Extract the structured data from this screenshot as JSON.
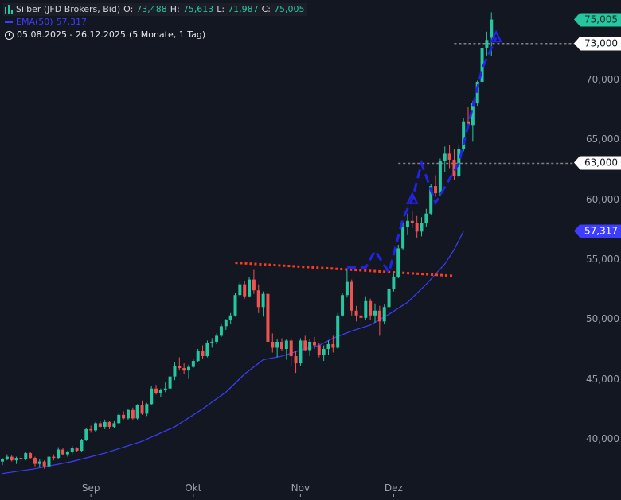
{
  "legend": {
    "symbol_line": "Silber (JFD Brokers, Bid)",
    "open_label": "O:",
    "open": "73,488",
    "high_label": "H:",
    "high": "75,613",
    "low_label": "L:",
    "low": "71,987",
    "close_label": "C:",
    "close": "75,005",
    "ema_label": "EMA(50)",
    "ema_value": "57,317",
    "range": "05.08.2025 - 26.12.2025",
    "period": "(5 Monate, 1 Tag)"
  },
  "colors": {
    "background": "#131722",
    "up": "#26c6a0",
    "down": "#ef5350",
    "ema": "#3d3dff",
    "trendline": "#ff3b1f",
    "projection": "#2323e8",
    "level": "#808080"
  },
  "icons": [
    "candles-icon",
    "line-icon",
    "clock-icon"
  ],
  "chart_data": {
    "type": "candlestick",
    "title": "Silber (JFD Brokers, Bid)",
    "ylim": [
      36000,
      77000
    ],
    "y_ticks": [
      {
        "value": 40000,
        "label": "40,000"
      },
      {
        "value": 45000,
        "label": "45,000"
      },
      {
        "value": 50000,
        "label": "50,000"
      },
      {
        "value": 55000,
        "label": "55,000"
      },
      {
        "value": 60000,
        "label": "60,000"
      },
      {
        "value": 65000,
        "label": "65,000"
      },
      {
        "value": 70000,
        "label": "70,000"
      }
    ],
    "x_ticks": [
      {
        "index": 19,
        "label": "Sep"
      },
      {
        "index": 41,
        "label": "Okt"
      },
      {
        "index": 64,
        "label": "Nov"
      },
      {
        "index": 84,
        "label": "Dez"
      }
    ],
    "candles": [
      [
        38100,
        38400,
        37800,
        38300
      ],
      [
        38300,
        38700,
        38200,
        38500
      ],
      [
        38500,
        38600,
        38100,
        38200
      ],
      [
        38200,
        38500,
        37900,
        38400
      ],
      [
        38400,
        38600,
        38100,
        38300
      ],
      [
        38300,
        38900,
        38200,
        38800
      ],
      [
        38800,
        38900,
        38300,
        38400
      ],
      [
        38400,
        38500,
        37700,
        37900
      ],
      [
        37900,
        38300,
        37600,
        38100
      ],
      [
        38100,
        38200,
        37500,
        37700
      ],
      [
        37700,
        38600,
        37600,
        38500
      ],
      [
        38500,
        38700,
        38200,
        38400
      ],
      [
        38400,
        39300,
        38300,
        39100
      ],
      [
        39100,
        39200,
        38600,
        38700
      ],
      [
        38700,
        39000,
        38500,
        38900
      ],
      [
        38900,
        39400,
        38700,
        39200
      ],
      [
        39200,
        39300,
        38900,
        39000
      ],
      [
        39000,
        40000,
        38900,
        39900
      ],
      [
        39900,
        40900,
        39800,
        40800
      ],
      [
        40800,
        41100,
        40500,
        40700
      ],
      [
        40700,
        41400,
        40600,
        41300
      ],
      [
        41300,
        41500,
        40900,
        41000
      ],
      [
        41000,
        41600,
        40800,
        41400
      ],
      [
        41400,
        41500,
        40800,
        41000
      ],
      [
        41000,
        41500,
        40900,
        41300
      ],
      [
        41300,
        42100,
        41200,
        42000
      ],
      [
        42000,
        42300,
        41600,
        41700
      ],
      [
        41700,
        42500,
        41600,
        42400
      ],
      [
        42400,
        42600,
        41600,
        41700
      ],
      [
        41700,
        42900,
        41600,
        42800
      ],
      [
        42800,
        43200,
        42000,
        42100
      ],
      [
        42100,
        43000,
        41900,
        42900
      ],
      [
        42900,
        44400,
        42800,
        44200
      ],
      [
        44200,
        44500,
        43700,
        43800
      ],
      [
        43800,
        44200,
        43500,
        44100
      ],
      [
        44100,
        44700,
        43900,
        44200
      ],
      [
        44200,
        45300,
        44100,
        45200
      ],
      [
        45200,
        46400,
        44900,
        46100
      ],
      [
        46100,
        46800,
        45700,
        45900
      ],
      [
        45900,
        46300,
        45400,
        45700
      ],
      [
        45700,
        46200,
        45000,
        46000
      ],
      [
        46000,
        46700,
        45900,
        46500
      ],
      [
        46500,
        47500,
        46400,
        47300
      ],
      [
        47300,
        47800,
        46700,
        46900
      ],
      [
        46900,
        48200,
        46800,
        48000
      ],
      [
        48000,
        48400,
        47600,
        48100
      ],
      [
        48100,
        48800,
        47900,
        48600
      ],
      [
        48600,
        49600,
        48500,
        49400
      ],
      [
        49400,
        50000,
        49100,
        49900
      ],
      [
        49900,
        50500,
        49600,
        50300
      ],
      [
        50300,
        52200,
        50200,
        52000
      ],
      [
        52000,
        53100,
        51800,
        52900
      ],
      [
        52900,
        53200,
        51700,
        51900
      ],
      [
        51900,
        53500,
        51800,
        53300
      ],
      [
        53300,
        54100,
        52100,
        52400
      ],
      [
        52400,
        52900,
        50500,
        51000
      ],
      [
        51000,
        52300,
        50200,
        52100
      ],
      [
        52100,
        52200,
        48000,
        48100
      ],
      [
        48100,
        48800,
        47200,
        47600
      ],
      [
        47600,
        48300,
        46800,
        48100
      ],
      [
        48100,
        48400,
        47300,
        47500
      ],
      [
        47500,
        48300,
        46600,
        48200
      ],
      [
        48200,
        48400,
        46100,
        46900
      ],
      [
        46900,
        47300,
        45500,
        46300
      ],
      [
        46300,
        48400,
        46100,
        48200
      ],
      [
        48200,
        48600,
        47300,
        47400
      ],
      [
        47400,
        48300,
        46900,
        48100
      ],
      [
        48100,
        48500,
        47500,
        47800
      ],
      [
        47800,
        48000,
        46800,
        47000
      ],
      [
        47000,
        47800,
        46500,
        47500
      ],
      [
        47500,
        48200,
        47000,
        47900
      ],
      [
        47900,
        48600,
        47200,
        47600
      ],
      [
        47600,
        50500,
        47500,
        50300
      ],
      [
        50300,
        52200,
        50200,
        52000
      ],
      [
        52000,
        54100,
        51800,
        53100
      ],
      [
        53100,
        53300,
        50300,
        50700
      ],
      [
        50700,
        51100,
        49800,
        50300
      ],
      [
        50300,
        51400,
        49600,
        50100
      ],
      [
        50100,
        51900,
        49900,
        51500
      ],
      [
        51500,
        51700,
        49900,
        50300
      ],
      [
        50300,
        51300,
        49700,
        50700
      ],
      [
        50700,
        51100,
        48600,
        49800
      ],
      [
        49800,
        51200,
        49600,
        51000
      ],
      [
        51000,
        52700,
        50800,
        52500
      ],
      [
        52500,
        53900,
        52300,
        53500
      ],
      [
        53500,
        56200,
        53400,
        55900
      ],
      [
        55900,
        58200,
        55800,
        57700
      ],
      [
        57700,
        58800,
        57000,
        58200
      ],
      [
        58200,
        59000,
        57600,
        58000
      ],
      [
        58000,
        58600,
        56800,
        57300
      ],
      [
        57300,
        58500,
        56900,
        58000
      ],
      [
        58000,
        59200,
        57700,
        58800
      ],
      [
        58800,
        61300,
        58700,
        61100
      ],
      [
        61100,
        62000,
        60200,
        60500
      ],
      [
        60500,
        63400,
        60300,
        63200
      ],
      [
        63200,
        64400,
        62300,
        63800
      ],
      [
        63800,
        64500,
        62600,
        63300
      ],
      [
        63300,
        64200,
        61600,
        61900
      ],
      [
        61900,
        64500,
        61800,
        64200
      ],
      [
        64200,
        66800,
        64000,
        66500
      ],
      [
        66500,
        67700,
        65900,
        66200
      ],
      [
        66200,
        68200,
        64800,
        68000
      ],
      [
        68000,
        69900,
        67800,
        69800
      ],
      [
        69800,
        72900,
        69500,
        72600
      ],
      [
        72600,
        74000,
        72000,
        73300
      ],
      [
        73488,
        75613,
        71987,
        75005
      ]
    ],
    "ema50": [
      [
        0,
        37100
      ],
      [
        7,
        37500
      ],
      [
        15,
        38100
      ],
      [
        22,
        38800
      ],
      [
        30,
        39800
      ],
      [
        37,
        41000
      ],
      [
        43,
        42500
      ],
      [
        48,
        43900
      ],
      [
        52,
        45400
      ],
      [
        56,
        46600
      ],
      [
        60,
        46900
      ],
      [
        64,
        47400
      ],
      [
        68,
        47800
      ],
      [
        71,
        48400
      ],
      [
        75,
        49000
      ],
      [
        79,
        49500
      ],
      [
        83,
        50400
      ],
      [
        87,
        51400
      ],
      [
        91,
        52900
      ],
      [
        95,
        54600
      ],
      [
        97,
        55800
      ],
      [
        99,
        57317
      ]
    ],
    "trendline": [
      [
        50,
        54700
      ],
      [
        97,
        53600
      ]
    ],
    "projection": [
      [
        74,
        54300
      ],
      [
        78,
        54300
      ],
      [
        80,
        55700
      ],
      [
        83,
        53900
      ],
      [
        86,
        58400
      ],
      [
        88,
        60000
      ],
      [
        90,
        63000
      ],
      [
        93,
        59700
      ],
      [
        98,
        63000
      ],
      [
        103,
        70900
      ],
      [
        106,
        73500
      ]
    ],
    "projection_arrowheads": [
      [
        88,
        60000
      ],
      [
        106,
        73500
      ]
    ],
    "level_lines": [
      {
        "value": 73000,
        "from_index": 97
      },
      {
        "value": 63000,
        "from_index": 85
      }
    ],
    "price_badges": [
      {
        "value": 75005,
        "label": "75,005",
        "style": "last"
      },
      {
        "value": 73000,
        "label": "73,000",
        "style": "white"
      },
      {
        "value": 63000,
        "label": "63,000",
        "style": "white"
      },
      {
        "value": 57317,
        "label": "57,317",
        "style": "ema"
      }
    ],
    "grid": false,
    "legend_position": "top-left"
  }
}
